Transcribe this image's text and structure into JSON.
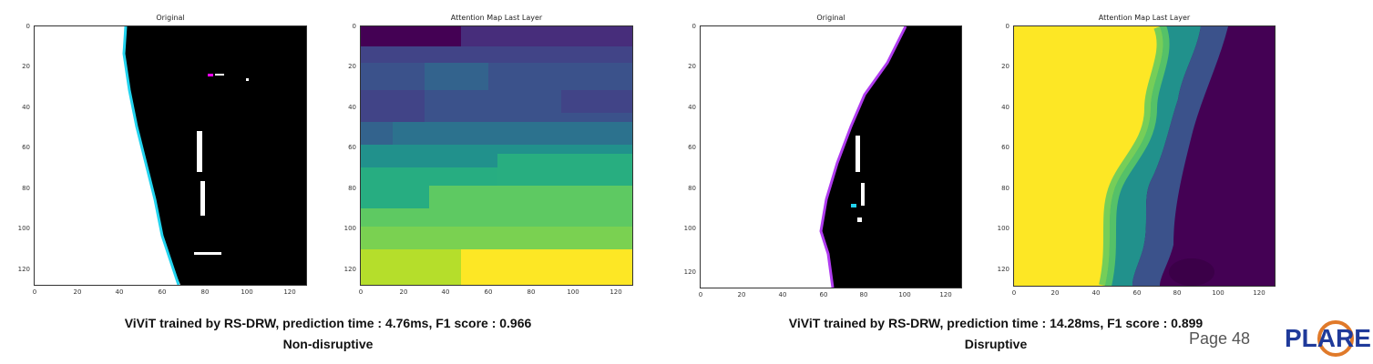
{
  "panels": [
    {
      "title": "Original"
    },
    {
      "title": "Attention Map Last Layer"
    },
    {
      "title": "Original"
    },
    {
      "title": "Attention Map Last Layer"
    }
  ],
  "y_ticks": [
    "0",
    "20",
    "40",
    "60",
    "80",
    "100",
    "120"
  ],
  "x_ticks": [
    "0",
    "20",
    "40",
    "60",
    "80",
    "100",
    "120"
  ],
  "captions": {
    "left_line1": "ViViT trained by RS-DRW, prediction time : 4.76ms, F1 score : 0.966",
    "left_line2": "Non-disruptive",
    "right_line1": "ViViT trained by RS-DRW, prediction time : 14.28ms, F1 score : 0.899",
    "right_line2": "Disruptive"
  },
  "page_number": "Page 48",
  "logo": {
    "text": "PLARE",
    "color": "#1f3a9a",
    "accent": "#e07a2a"
  },
  "colors": {
    "viridis_dark": "#440154",
    "viridis_yellow": "#fde725"
  }
}
